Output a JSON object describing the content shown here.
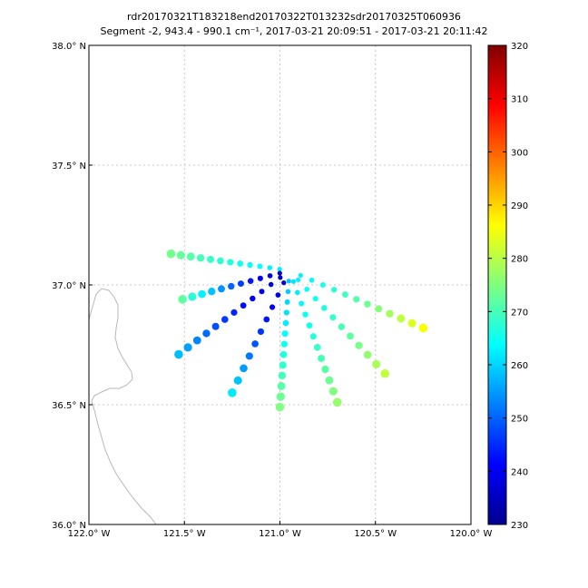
{
  "chart_data": {
    "type": "scatter",
    "title": "rdr20170321T183218end20170322T013232sdr20170325T060936",
    "subtitle": "Segment -2, 943.4 - 990.1 cm⁻¹, 2017-03-21 20:09:51 - 2017-03-21 20:11:42",
    "xlim": [
      -122.0,
      -120.0
    ],
    "ylim": [
      36.0,
      38.0
    ],
    "x_ticks": [
      {
        "value": -122.0,
        "label": "122.0° W"
      },
      {
        "value": -121.5,
        "label": "121.5° W"
      },
      {
        "value": -121.0,
        "label": "121.0° W"
      },
      {
        "value": -120.5,
        "label": "120.5° W"
      },
      {
        "value": -120.0,
        "label": "120.0° W"
      }
    ],
    "y_ticks": [
      {
        "value": 36.0,
        "label": "36.0° N"
      },
      {
        "value": 36.5,
        "label": "36.5° N"
      },
      {
        "value": 37.0,
        "label": "37.0° N"
      },
      {
        "value": 37.5,
        "label": "37.5° N"
      },
      {
        "value": 38.0,
        "label": "38.0° N"
      }
    ],
    "grid": true,
    "colorbar": {
      "min": 230,
      "max": 320,
      "ticks": [
        {
          "value": 320,
          "label": "320"
        },
        {
          "value": 310,
          "label": "310"
        },
        {
          "value": 300,
          "label": "300"
        },
        {
          "value": 290,
          "label": "290"
        },
        {
          "value": 280,
          "label": "280"
        },
        {
          "value": 270,
          "label": "270"
        },
        {
          "value": 260,
          "label": "260"
        },
        {
          "value": 250,
          "label": "250"
        },
        {
          "value": 240,
          "label": "240"
        },
        {
          "value": 230,
          "label": "230"
        }
      ]
    },
    "rays": [
      {
        "end_lon": -121.57,
        "end_lat": 37.13,
        "end_val": 274,
        "start_val": 262,
        "n": 12
      },
      {
        "end_lon": -121.51,
        "end_lat": 36.94,
        "end_val": 272,
        "start_val": 234,
        "n": 11
      },
      {
        "end_lon": -121.53,
        "end_lat": 36.71,
        "end_val": 258,
        "start_val": 236,
        "n": 12
      },
      {
        "end_lon": -121.25,
        "end_lat": 36.55,
        "end_val": 262,
        "start_val": 236,
        "n": 10
      },
      {
        "end_lon": -121.0,
        "end_lat": 36.49,
        "end_val": 275,
        "start_val": 258,
        "n": 13
      },
      {
        "end_lon": -120.7,
        "end_lat": 36.51,
        "end_val": 277,
        "start_val": 261,
        "n": 12
      },
      {
        "end_lon": -120.45,
        "end_lat": 36.63,
        "end_val": 281,
        "start_val": 262,
        "n": 11
      },
      {
        "end_lon": -120.25,
        "end_lat": 36.82,
        "end_val": 286,
        "start_val": 262,
        "n": 12
      }
    ]
  }
}
